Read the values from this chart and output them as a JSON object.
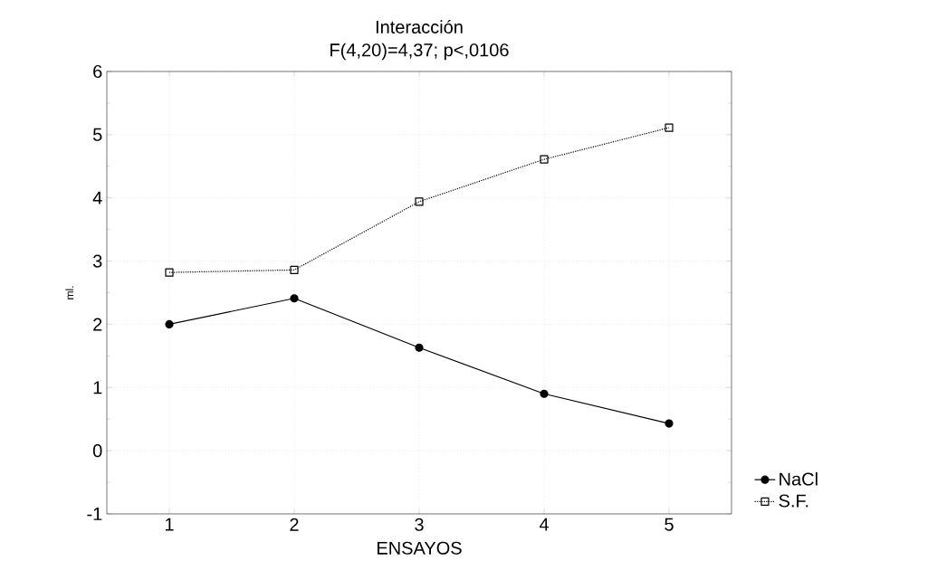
{
  "chart_data": {
    "type": "line",
    "title": "Interacción",
    "subtitle": "F(4,20)=4,37; p<,0106",
    "xlabel": "ENSAYOS",
    "ylabel": "ml.",
    "x": [
      1,
      2,
      3,
      4,
      5
    ],
    "series": [
      {
        "name": "NaCl",
        "color": "#000000",
        "marker": "circle",
        "line_style": "solid",
        "values": [
          2.0,
          2.41,
          1.63,
          0.9,
          0.43
        ]
      },
      {
        "name": "S.F.",
        "color": "#000000",
        "marker": "square",
        "line_style": "dotted",
        "values": [
          2.82,
          2.86,
          3.94,
          4.61,
          5.11
        ]
      }
    ],
    "xlim": [
      0.5,
      5.5
    ],
    "ylim": [
      -1,
      6
    ],
    "xticks": [
      1,
      2,
      3,
      4,
      5
    ],
    "yticks": [
      -1,
      0,
      1,
      2,
      3,
      4,
      5,
      6
    ],
    "grid": true,
    "legend": "bottom right"
  }
}
